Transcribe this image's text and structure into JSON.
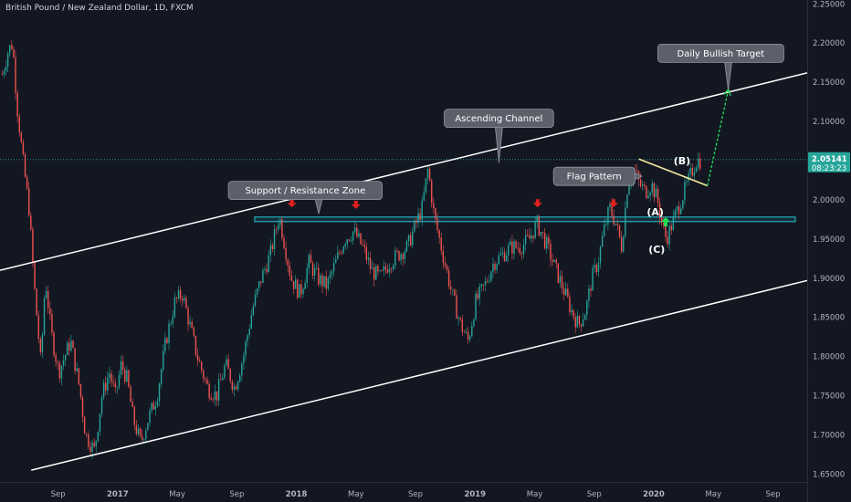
{
  "header": {
    "symbol_title": "British Pound / New Zealand Dollar, 1D, FXCM"
  },
  "colors": {
    "background": "#131722",
    "up": "#26a69a",
    "down": "#ef5350",
    "channel": "#ffffff",
    "zone": "#26c6da",
    "flag": "#f5e79e",
    "target_arrow": "#22dd55",
    "marker": "#e01f1f",
    "price_tag": "#26a69a",
    "callout": "#5d606b"
  },
  "chart_data": {
    "type": "candlestick",
    "title": "British Pound / New Zealand Dollar, 1D, FXCM",
    "x_ticks": [
      "Sep",
      "2017",
      "May",
      "Sep",
      "2018",
      "May",
      "Sep",
      "2019",
      "May",
      "Sep",
      "2020",
      "May",
      "Sep"
    ],
    "x_ticks_t": [
      0.0,
      4.0,
      8.0,
      12.0,
      16.0,
      20.0,
      24.0,
      28.0,
      32.0,
      36.0,
      40.0,
      44.0,
      48.0
    ],
    "y_ticks": [
      "2.25000",
      "2.20000",
      "2.15000",
      "2.10000",
      "2.05000",
      "2.00000",
      "1.95000",
      "1.90000",
      "1.85000",
      "1.80000",
      "1.75000",
      "1.70000",
      "1.65000"
    ],
    "ylim": [
      1.64,
      2.255
    ],
    "xlim": [
      -3.9,
      50.3
    ],
    "price_path": [
      [
        -3.8,
        2.16
      ],
      [
        -3.4,
        2.19
      ],
      [
        -3.1,
        2.2
      ],
      [
        -2.8,
        2.12
      ],
      [
        -2.4,
        2.05
      ],
      [
        -2.0,
        1.99
      ],
      [
        -1.6,
        1.88
      ],
      [
        -1.2,
        1.79
      ],
      [
        -0.9,
        1.9
      ],
      [
        -0.5,
        1.83
      ],
      [
        0.0,
        1.78
      ],
      [
        0.4,
        1.8
      ],
      [
        0.8,
        1.82
      ],
      [
        1.4,
        1.76
      ],
      [
        1.8,
        1.7
      ],
      [
        2.4,
        1.68
      ],
      [
        2.9,
        1.75
      ],
      [
        3.4,
        1.78
      ],
      [
        3.8,
        1.75
      ],
      [
        4.2,
        1.79
      ],
      [
        4.6,
        1.77
      ],
      [
        5.0,
        1.72
      ],
      [
        5.5,
        1.69
      ],
      [
        6.0,
        1.72
      ],
      [
        6.6,
        1.75
      ],
      [
        7.2,
        1.82
      ],
      [
        7.8,
        1.87
      ],
      [
        8.3,
        1.88
      ],
      [
        8.8,
        1.84
      ],
      [
        9.3,
        1.8
      ],
      [
        10.0,
        1.76
      ],
      [
        10.6,
        1.75
      ],
      [
        11.2,
        1.79
      ],
      [
        11.8,
        1.76
      ],
      [
        12.4,
        1.8
      ],
      [
        13.0,
        1.86
      ],
      [
        13.6,
        1.9
      ],
      [
        14.2,
        1.93
      ],
      [
        14.8,
        1.98
      ],
      [
        15.2,
        1.94
      ],
      [
        15.6,
        1.9
      ],
      [
        16.2,
        1.88
      ],
      [
        16.8,
        1.92
      ],
      [
        17.4,
        1.9
      ],
      [
        18.0,
        1.89
      ],
      [
        18.6,
        1.92
      ],
      [
        19.2,
        1.95
      ],
      [
        19.8,
        1.96
      ],
      [
        20.4,
        1.94
      ],
      [
        21.0,
        1.91
      ],
      [
        21.6,
        1.9
      ],
      [
        22.2,
        1.92
      ],
      [
        22.8,
        1.93
      ],
      [
        23.4,
        1.94
      ],
      [
        24.0,
        1.97
      ],
      [
        24.4,
        1.99
      ],
      [
        24.8,
        2.04
      ],
      [
        25.2,
        1.98
      ],
      [
        25.8,
        1.93
      ],
      [
        26.4,
        1.88
      ],
      [
        27.0,
        1.84
      ],
      [
        27.5,
        1.82
      ],
      [
        28.0,
        1.87
      ],
      [
        28.6,
        1.89
      ],
      [
        29.2,
        1.92
      ],
      [
        29.8,
        1.93
      ],
      [
        30.4,
        1.94
      ],
      [
        31.0,
        1.94
      ],
      [
        31.6,
        1.95
      ],
      [
        32.1,
        1.97
      ],
      [
        32.6,
        1.95
      ],
      [
        33.2,
        1.92
      ],
      [
        33.8,
        1.89
      ],
      [
        34.4,
        1.86
      ],
      [
        34.9,
        1.84
      ],
      [
        35.4,
        1.86
      ],
      [
        35.8,
        1.9
      ],
      [
        36.2,
        1.92
      ],
      [
        36.6,
        1.96
      ],
      [
        37.0,
        1.99
      ],
      [
        37.4,
        1.97
      ],
      [
        37.8,
        1.94
      ],
      [
        38.2,
        2.02
      ],
      [
        38.6,
        2.04
      ],
      [
        39.0,
        2.02
      ],
      [
        39.4,
        2.01
      ],
      [
        39.8,
        2.02
      ],
      [
        40.2,
        2.0
      ],
      [
        40.5,
        1.97
      ],
      [
        40.8,
        1.95
      ],
      [
        41.2,
        1.97
      ],
      [
        41.6,
        1.99
      ],
      [
        42.0,
        2.01
      ],
      [
        42.4,
        2.03
      ],
      [
        42.8,
        2.05
      ],
      [
        43.1,
        2.05
      ]
    ],
    "last_price_label": "2.05141",
    "countdown_label": "08:23:23",
    "last_price": 2.05141,
    "resistance_zone": {
      "low": 1.973,
      "high": 1.978,
      "t_start": 13.2,
      "t_end": 49.5
    },
    "channel_upper": [
      [
        -3.9,
        1.91
      ],
      [
        50.3,
        2.162
      ]
    ],
    "channel_lower": [
      [
        -1.8,
        1.655
      ],
      [
        50.3,
        1.897
      ]
    ],
    "flag_line": [
      [
        39.0,
        2.052
      ],
      [
        43.6,
        2.018
      ]
    ],
    "target_arrow": [
      [
        43.6,
        2.018
      ],
      [
        45.0,
        2.14
      ]
    ],
    "resistance_markers": [
      [
        15.7,
        1.995
      ],
      [
        20.0,
        1.993
      ],
      [
        32.2,
        1.995
      ],
      [
        37.3,
        1.995
      ]
    ],
    "support_marker": [
      40.8,
      1.972
    ],
    "annotations": [
      {
        "label": "Daily Bullish Target",
        "t": 44.5,
        "y": 2.187,
        "tip_t": 45.0,
        "tip_y": 2.14
      },
      {
        "label": "Ascending Channel",
        "t": 29.6,
        "y": 2.104,
        "tip_t": 29.6,
        "tip_y": 2.047
      },
      {
        "label": "Flag Pattern",
        "t": 36.0,
        "y": 2.03,
        "tip_t": 39.2,
        "tip_y": 2.03
      },
      {
        "label": "Support / Resistance Zone",
        "t": 16.6,
        "y": 2.012,
        "tip_t": 17.5,
        "tip_y": 1.982
      }
    ],
    "wave_labels": [
      {
        "label": "(B)",
        "t": 41.9,
        "y": 2.05
      },
      {
        "label": "(A)",
        "t": 40.1,
        "y": 1.985
      },
      {
        "label": "(C)",
        "t": 40.2,
        "y": 1.937
      }
    ]
  }
}
